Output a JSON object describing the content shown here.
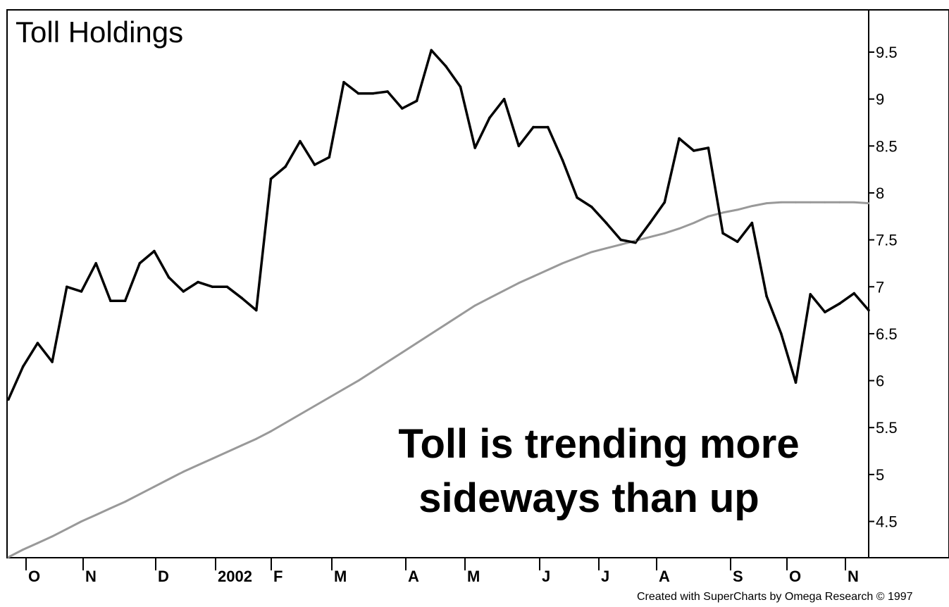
{
  "chart_data": {
    "type": "line",
    "title": "Toll Holdings",
    "annotation_lines": [
      "Toll is trending more",
      "sideways than up"
    ],
    "credit": "Created with SuperCharts by Omega Research © 1997",
    "y_ticks": [
      "9.5",
      "9",
      "8.5",
      "8",
      "7.5",
      "7",
      "6.5",
      "6",
      "5.5",
      "5",
      "4.5"
    ],
    "ylim": [
      4.1,
      9.95
    ],
    "x_labels": [
      "O",
      "N",
      "D",
      "2002",
      "F",
      "M",
      "A",
      "M",
      "J",
      "J",
      "A",
      "S",
      "O",
      "N"
    ],
    "grid": false,
    "colors": {
      "price": "#000000",
      "moving_average": "#999999"
    },
    "series": [
      {
        "values": [
          5.8,
          6.15,
          6.4,
          6.2,
          7.0,
          6.95,
          7.25,
          6.85,
          6.85,
          7.25,
          7.38,
          7.1,
          6.95,
          7.05,
          7.0,
          7.0,
          6.88,
          6.75,
          8.15,
          8.28,
          8.55,
          8.3,
          8.38,
          9.18,
          9.06,
          9.06,
          9.08,
          8.9,
          8.98,
          9.52,
          9.35,
          9.13,
          8.48,
          8.8,
          9.0,
          8.5,
          8.7,
          8.7,
          8.35,
          7.95,
          7.85,
          7.68,
          7.5,
          7.47,
          7.68,
          7.9,
          8.58,
          8.45,
          8.48,
          7.57,
          7.48,
          7.68,
          6.9,
          6.5,
          5.98,
          6.92,
          6.73,
          6.82,
          6.93,
          6.75
        ]
      },
      {
        "values": [
          4.12,
          4.2,
          4.27,
          4.34,
          4.42,
          4.5,
          4.57,
          4.64,
          4.71,
          4.79,
          4.87,
          4.95,
          5.03,
          5.1,
          5.17,
          5.24,
          5.31,
          5.38,
          5.46,
          5.55,
          5.64,
          5.73,
          5.82,
          5.91,
          6.0,
          6.1,
          6.2,
          6.3,
          6.4,
          6.5,
          6.6,
          6.7,
          6.8,
          6.88,
          6.96,
          7.04,
          7.11,
          7.18,
          7.25,
          7.31,
          7.37,
          7.41,
          7.45,
          7.49,
          7.53,
          7.57,
          7.62,
          7.68,
          7.75,
          7.79,
          7.82,
          7.86,
          7.89,
          7.9,
          7.9,
          7.9,
          7.9,
          7.9,
          7.9,
          7.89
        ]
      }
    ]
  }
}
